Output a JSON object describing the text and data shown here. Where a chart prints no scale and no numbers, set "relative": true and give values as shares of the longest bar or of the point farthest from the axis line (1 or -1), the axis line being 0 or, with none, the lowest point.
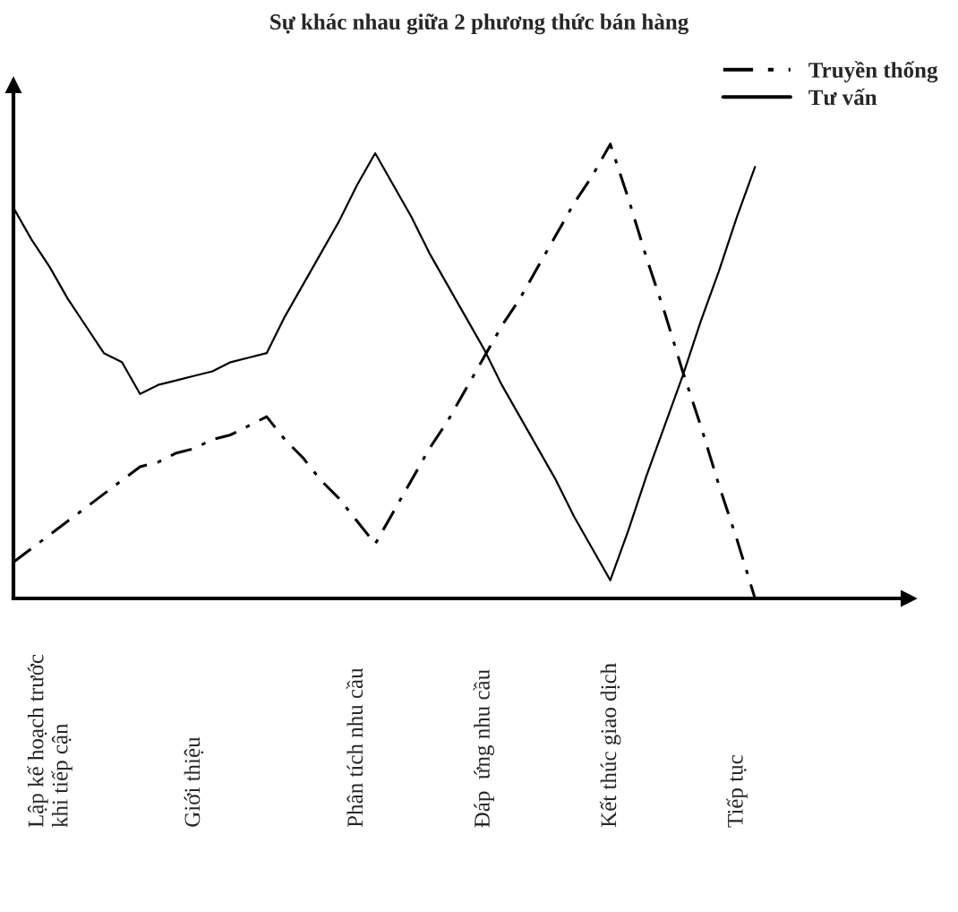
{
  "chart_data": {
    "type": "line",
    "title": "Sự khác nhau giữa 2 phương thức bán hàng",
    "relative": true,
    "categories": [
      null,
      null,
      "Lập kế hoạch trước\nkhi tiếp cận",
      null,
      null,
      null,
      null,
      null,
      null,
      null,
      "Giới thiệu",
      null,
      null,
      null,
      null,
      null,
      null,
      null,
      null,
      "Phân tích nhu cầu",
      null,
      null,
      null,
      null,
      null,
      null,
      "Đáp  ứng nhu cầu",
      null,
      null,
      null,
      null,
      null,
      null,
      "Kết thúc giao dịch",
      null,
      null,
      null,
      null,
      null,
      null,
      "Tiếp tục",
      null
    ],
    "series": [
      {
        "name": "Truyền thống",
        "color": "#000000",
        "line_style": "dashdot",
        "values": [
          0.08,
          0.11,
          0.14,
          0.17,
          0.2,
          0.23,
          0.26,
          0.29,
          0.3,
          0.32,
          0.33,
          0.35,
          0.36,
          0.38,
          0.4,
          0.35,
          0.31,
          0.26,
          0.22,
          0.17,
          0.12,
          0.19,
          0.26,
          0.33,
          0.39,
          0.46,
          0.53,
          0.6,
          0.66,
          0.73,
          0.8,
          0.87,
          0.93,
          1.0,
          0.88,
          0.75,
          0.63,
          0.5,
          0.38,
          0.25,
          0.13,
          0.0
        ]
      },
      {
        "name": "Tư vấn",
        "color": "#000000",
        "line_style": "solid",
        "values": [
          0.86,
          0.79,
          0.73,
          0.66,
          0.6,
          0.54,
          0.52,
          0.45,
          0.47,
          0.48,
          0.49,
          0.5,
          0.52,
          0.53,
          0.54,
          0.62,
          0.69,
          0.76,
          0.83,
          0.91,
          0.98,
          0.91,
          0.84,
          0.76,
          0.69,
          0.62,
          0.55,
          0.47,
          0.4,
          0.33,
          0.26,
          0.18,
          0.11,
          0.04,
          0.15,
          0.27,
          0.38,
          0.49,
          0.61,
          0.72,
          0.84,
          0.95
        ]
      }
    ],
    "legend": "top right"
  }
}
